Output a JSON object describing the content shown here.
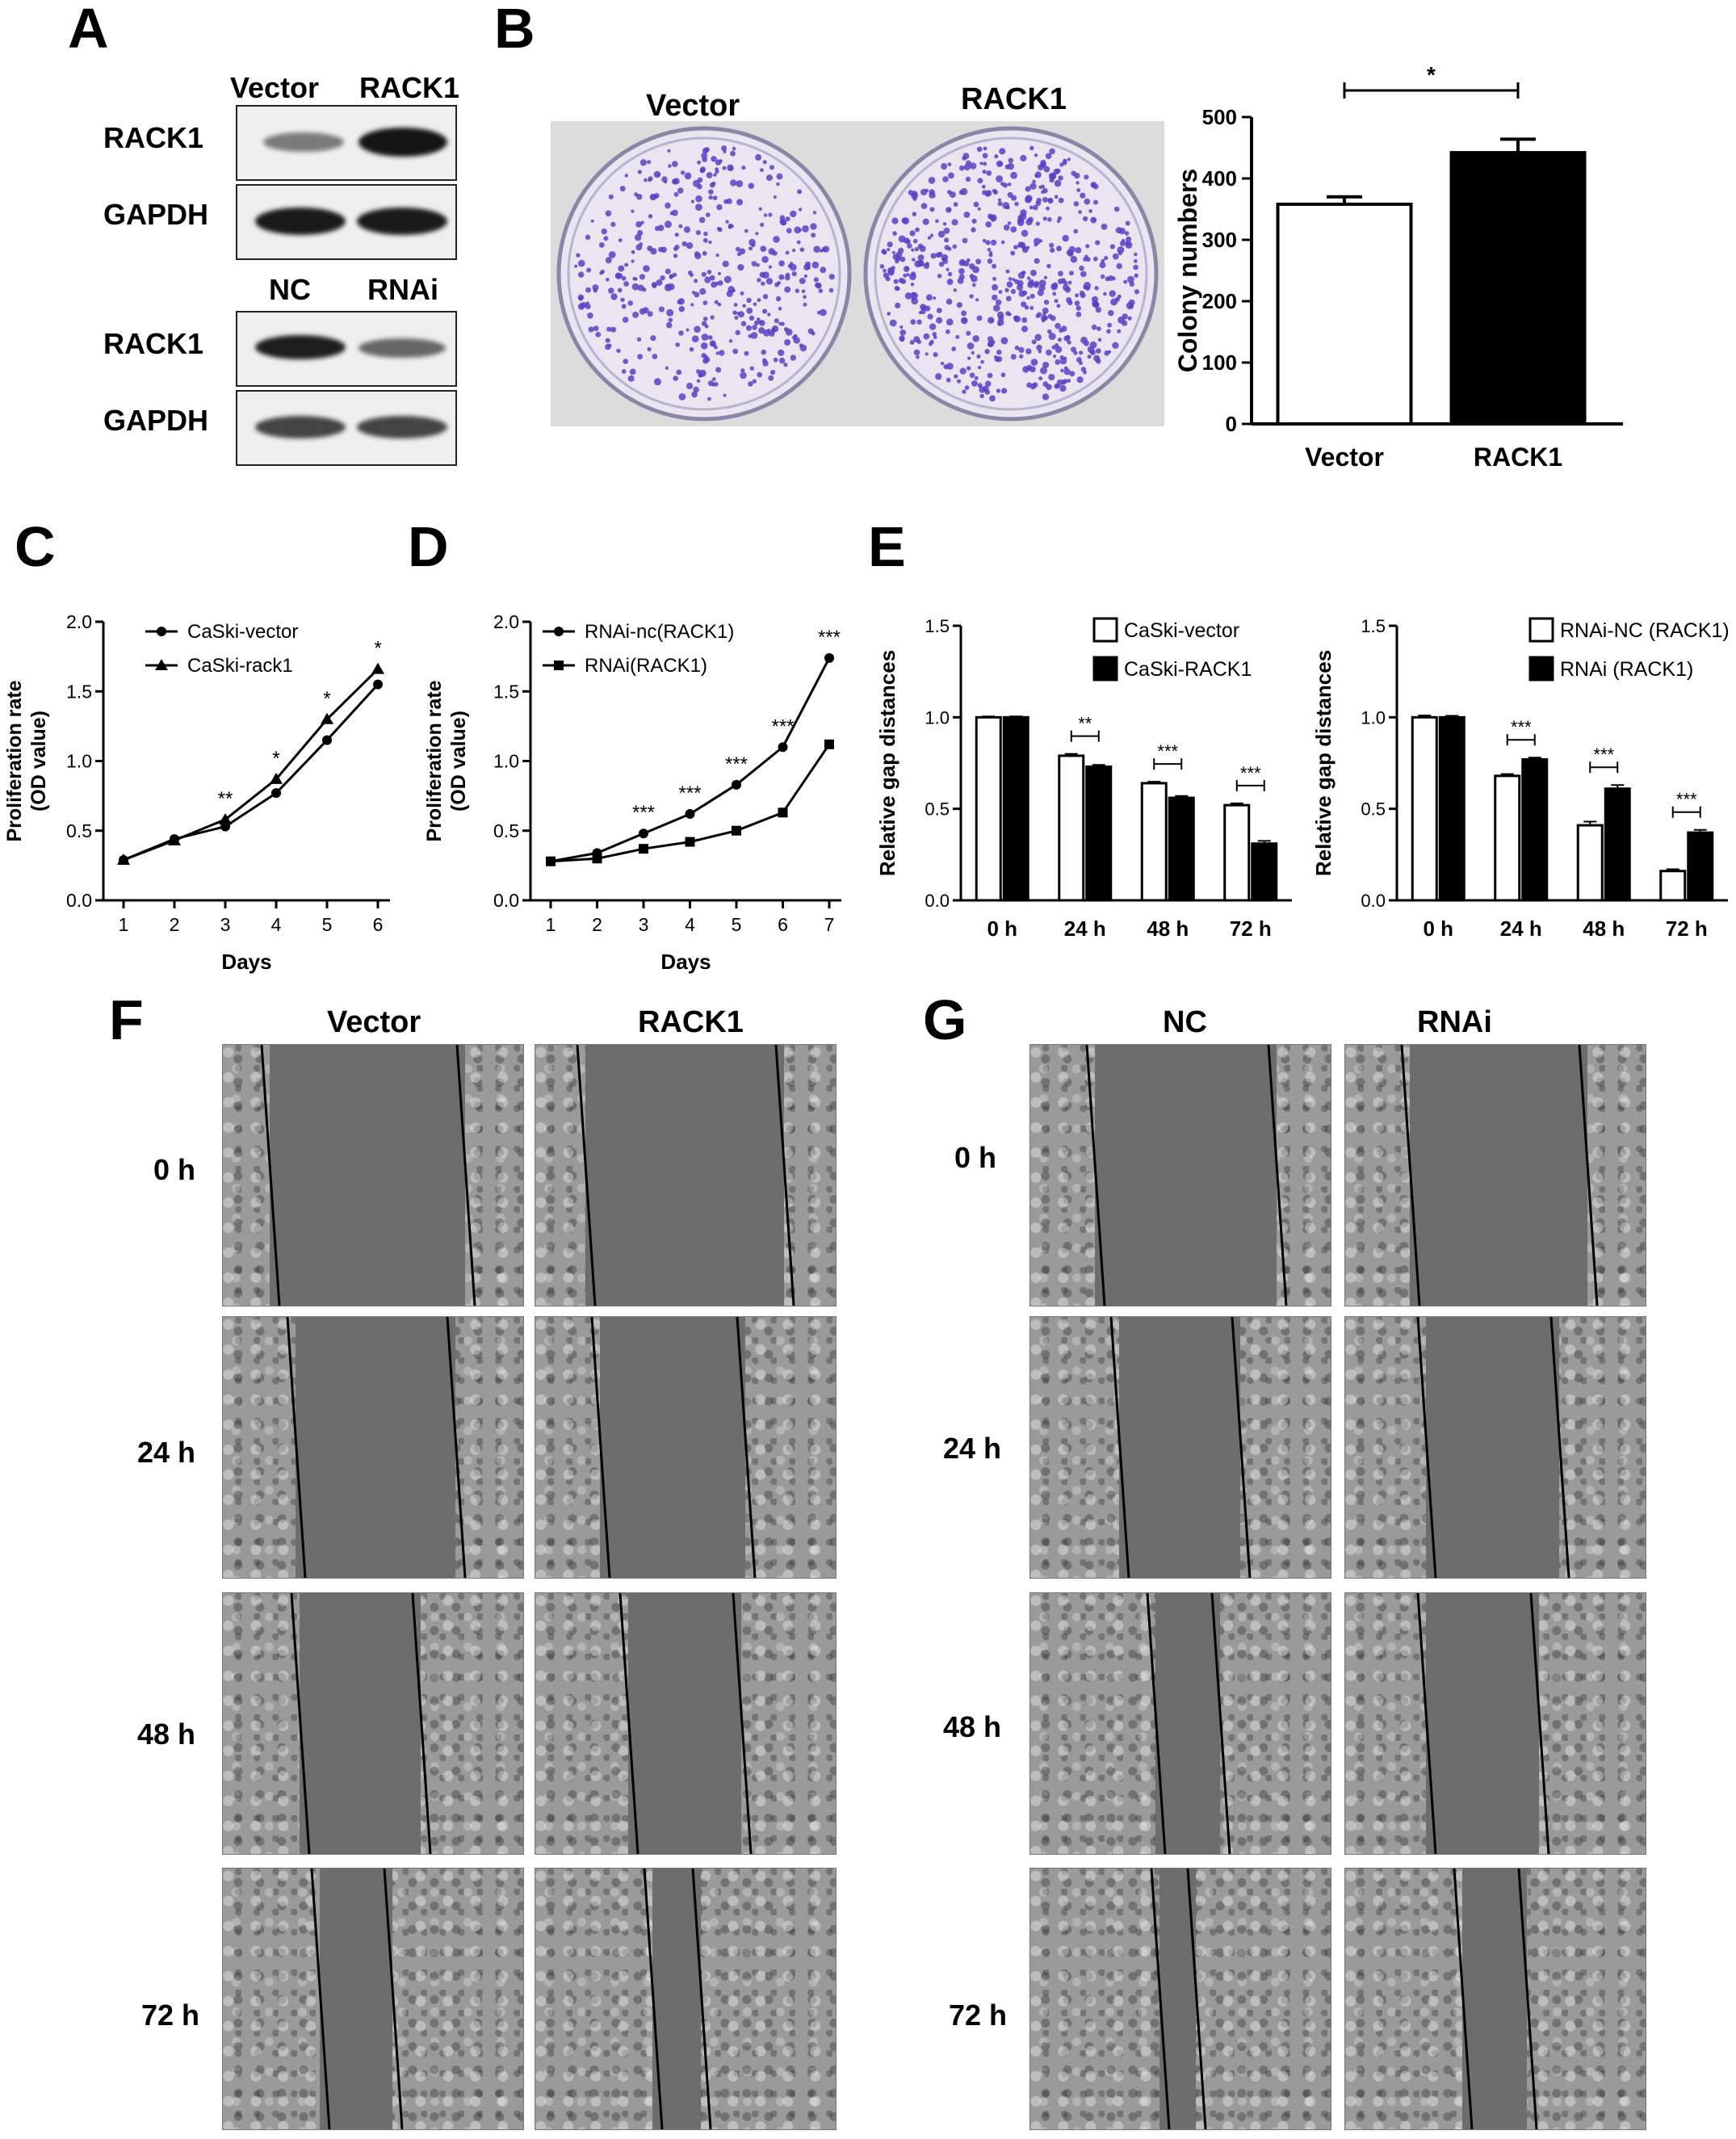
{
  "panel_labels": {
    "A": "A",
    "B": "B",
    "C": "C",
    "D": "D",
    "E": "E",
    "F": "F",
    "G": "G"
  },
  "panel_a": {
    "top_lanes": [
      "Vector",
      "RACK1"
    ],
    "bottom_lanes": [
      "NC",
      "RNAi"
    ],
    "rows": [
      "RACK1",
      "GAPDH"
    ]
  },
  "panel_b": {
    "plate_labels": [
      "Vector",
      "RACK1"
    ]
  },
  "panel_f": {
    "columns": [
      "Vector",
      "RACK1"
    ],
    "rows": [
      "0 h",
      "24 h",
      "48 h",
      "72 h"
    ]
  },
  "panel_g": {
    "columns": [
      "NC",
      "RNAi"
    ],
    "rows": [
      "0 h",
      "24 h",
      "48 h",
      "72 h"
    ]
  },
  "colors": {
    "black": "#000000",
    "white": "#ffffff",
    "crystal_violet": "#5a3fc4",
    "gap": "#6d6d6d"
  },
  "chart_data": [
    {
      "id": "B",
      "type": "bar",
      "categories": [
        "Vector",
        "RACK1"
      ],
      "values": [
        358,
        442
      ],
      "errors": [
        12,
        22
      ],
      "fills": [
        "#ffffff",
        "#000000"
      ],
      "ylabel": "Colony numbers",
      "ylim": [
        0,
        500
      ],
      "yticks": [
        0,
        100,
        200,
        300,
        400,
        500
      ],
      "significance": "*"
    },
    {
      "id": "C",
      "type": "line",
      "x": [
        1,
        2,
        3,
        4,
        5,
        6
      ],
      "series": [
        {
          "name": "CaSki-vector",
          "marker": "circle",
          "values": [
            0.29,
            0.44,
            0.53,
            0.77,
            1.15,
            1.55
          ]
        },
        {
          "name": "CaSki-rack1",
          "marker": "triangle",
          "values": [
            0.29,
            0.43,
            0.58,
            0.87,
            1.3,
            1.66
          ]
        }
      ],
      "xlabel": "Days",
      "ylabel": "Proliferation rate (OD value)",
      "ylim": [
        0,
        2.0
      ],
      "yticks": [
        "0.0",
        "0.5",
        "1.0",
        "1.5",
        "2.0"
      ],
      "annotations": [
        {
          "x": 3,
          "text": "**"
        },
        {
          "x": 4,
          "text": "*"
        },
        {
          "x": 5,
          "text": "*"
        },
        {
          "x": 6,
          "text": "*"
        }
      ]
    },
    {
      "id": "D",
      "type": "line",
      "x": [
        1,
        2,
        3,
        4,
        5,
        6,
        7
      ],
      "series": [
        {
          "name": "RNAi-nc(RACK1)",
          "marker": "circle",
          "values": [
            0.28,
            0.34,
            0.48,
            0.62,
            0.83,
            1.1,
            1.74
          ]
        },
        {
          "name": "RNAi(RACK1)",
          "marker": "square",
          "values": [
            0.28,
            0.3,
            0.37,
            0.42,
            0.5,
            0.63,
            1.12
          ]
        }
      ],
      "xlabel": "Days",
      "ylabel": "Proliferation rate (OD value)",
      "ylim": [
        0,
        2.0
      ],
      "yticks": [
        "0.0",
        "0.5",
        "1.0",
        "1.5",
        "2.0"
      ],
      "annotations": [
        {
          "x": 3,
          "text": "***"
        },
        {
          "x": 4,
          "text": "***"
        },
        {
          "x": 5,
          "text": "***"
        },
        {
          "x": 6,
          "text": "***"
        },
        {
          "x": 7,
          "text": "***"
        }
      ]
    },
    {
      "id": "E1",
      "type": "bar",
      "categories": [
        "0 h",
        "24 h",
        "48 h",
        "72 h"
      ],
      "series": [
        {
          "name": "CaSki-vector",
          "fill": "#ffffff",
          "values": [
            1.0,
            0.79,
            0.64,
            0.52
          ],
          "errors": [
            0.005,
            0.01,
            0.008,
            0.01
          ]
        },
        {
          "name": "CaSki-RACK1",
          "fill": "#000000",
          "values": [
            1.0,
            0.73,
            0.56,
            0.31
          ],
          "errors": [
            0.005,
            0.01,
            0.01,
            0.015
          ]
        }
      ],
      "ylabel": "Relative gap distances",
      "ylim": [
        0,
        1.5
      ],
      "yticks": [
        "0.0",
        "0.5",
        "1.0",
        "1.5"
      ],
      "significance": [
        "",
        "**",
        "***",
        "***"
      ]
    },
    {
      "id": "E2",
      "type": "bar",
      "categories": [
        "0 h",
        "24 h",
        "48 h",
        "72 h"
      ],
      "series": [
        {
          "name": "RNAi-NC (RACK1)",
          "fill": "#ffffff",
          "values": [
            1.0,
            0.68,
            0.41,
            0.16
          ],
          "errors": [
            0.01,
            0.01,
            0.02,
            0.01
          ]
        },
        {
          "name": "RNAi (RACK1)",
          "fill": "#000000",
          "values": [
            1.0,
            0.77,
            0.61,
            0.37
          ],
          "errors": [
            0.008,
            0.01,
            0.02,
            0.015
          ]
        }
      ],
      "ylabel": "Relative gap distances",
      "ylim": [
        0,
        1.5
      ],
      "yticks": [
        "0.0",
        "0.5",
        "1.0",
        "1.5"
      ],
      "significance": [
        "",
        "***",
        "***",
        "***"
      ]
    }
  ]
}
